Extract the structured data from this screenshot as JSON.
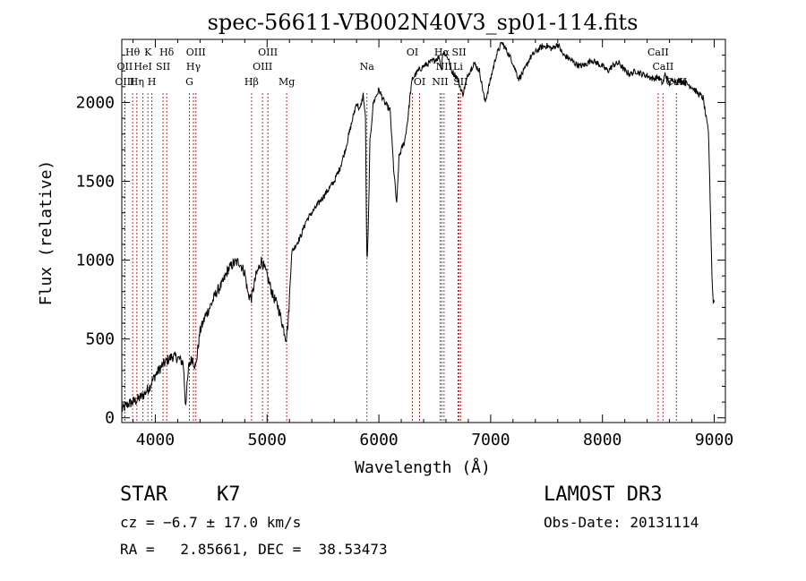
{
  "chart_data": {
    "type": "line",
    "title": "spec-56611-VB002N40V3_sp01-114.fits",
    "xlabel": "Wavelength (Å)",
    "ylabel": "Flux (relative)",
    "xlim": [
      3700,
      9100
    ],
    "ylim": [
      -30,
      2400
    ],
    "x_ticks": [
      4000,
      5000,
      6000,
      7000,
      8000,
      9000
    ],
    "y_ticks": [
      0,
      500,
      1000,
      1500,
      2000
    ],
    "colors": {
      "line": "#000000",
      "marker": "#b03030"
    },
    "series": [
      {
        "name": "flux",
        "x": [
          3700,
          3760,
          3800,
          3850,
          3900,
          3950,
          4000,
          4050,
          4100,
          4150,
          4200,
          4250,
          4270,
          4300,
          4330,
          4360,
          4400,
          4450,
          4500,
          4550,
          4600,
          4650,
          4700,
          4750,
          4800,
          4830,
          4860,
          4900,
          4950,
          5000,
          5050,
          5100,
          5150,
          5170,
          5190,
          5220,
          5260,
          5300,
          5350,
          5400,
          5450,
          5500,
          5550,
          5600,
          5650,
          5700,
          5750,
          5800,
          5830,
          5860,
          5880,
          5890,
          5895,
          5905,
          5920,
          5950,
          6000,
          6050,
          6100,
          6130,
          6160,
          6180,
          6200,
          6230,
          6260,
          6280,
          6300,
          6350,
          6400,
          6450,
          6500,
          6540,
          6560,
          6565,
          6580,
          6620,
          6650,
          6700,
          6750,
          6800,
          6850,
          6900,
          6950,
          7000,
          7050,
          7100,
          7150,
          7200,
          7250,
          7300,
          7350,
          7400,
          7450,
          7500,
          7550,
          7600,
          7650,
          7700,
          7750,
          7800,
          7850,
          7900,
          7950,
          8000,
          8050,
          8100,
          8150,
          8200,
          8250,
          8300,
          8350,
          8400,
          8450,
          8500,
          8540,
          8560,
          8600,
          8640,
          8660,
          8700,
          8750,
          8800,
          8850,
          8900,
          8950,
          8980,
          8990,
          9000
        ],
        "values": [
          50,
          90,
          100,
          120,
          150,
          200,
          270,
          320,
          360,
          390,
          380,
          350,
          80,
          330,
          380,
          320,
          550,
          650,
          720,
          800,
          850,
          940,
          980,
          990,
          920,
          780,
          760,
          900,
          1000,
          900,
          780,
          700,
          560,
          500,
          620,
          1050,
          1100,
          1150,
          1250,
          1300,
          1350,
          1400,
          1450,
          1500,
          1580,
          1700,
          1850,
          2000,
          1950,
          2050,
          1900,
          1100,
          980,
          1200,
          1750,
          2000,
          2080,
          2000,
          1950,
          1600,
          1350,
          1650,
          1700,
          1750,
          1900,
          2050,
          2150,
          2200,
          2230,
          2250,
          2270,
          2290,
          2200,
          2300,
          2320,
          2280,
          2200,
          2160,
          2050,
          2180,
          2250,
          2200,
          2000,
          2150,
          2300,
          2380,
          2320,
          2250,
          2150,
          2200,
          2280,
          2320,
          2350,
          2360,
          2340,
          2370,
          2300,
          2280,
          2250,
          2230,
          2240,
          2270,
          2250,
          2230,
          2200,
          2240,
          2250,
          2200,
          2180,
          2200,
          2180,
          2170,
          2150,
          2160,
          2120,
          2180,
          2120,
          2150,
          2130,
          2140,
          2120,
          2100,
          2060,
          2030,
          1800,
          900,
          740,
          740
        ]
      }
    ],
    "line_markers": [
      {
        "label": "Hθ",
        "x": 3797,
        "row": 1
      },
      {
        "label": "OII",
        "x": 3727,
        "row": 2
      },
      {
        "label": "HeI",
        "x": 3889,
        "row": 2
      },
      {
        "label": "OIII",
        "x": 3727,
        "row": 3
      },
      {
        "label": "Hη",
        "x": 3835,
        "row": 3
      },
      {
        "label": "K",
        "x": 3934,
        "row": 1
      },
      {
        "label": "H",
        "x": 3969,
        "row": 3
      },
      {
        "label": "SII",
        "x": 4069,
        "row": 2
      },
      {
        "label": "Hδ",
        "x": 4102,
        "row": 1
      },
      {
        "label": "OIII",
        "x": 4363,
        "row": 1
      },
      {
        "label": "Hγ",
        "x": 4341,
        "row": 2
      },
      {
        "label": "G",
        "x": 4305,
        "row": 3
      },
      {
        "label": "OIII",
        "x": 5007,
        "row": 1
      },
      {
        "label": "OIII",
        "x": 4959,
        "row": 2
      },
      {
        "label": "Hβ",
        "x": 4861,
        "row": 3
      },
      {
        "label": "Mg",
        "x": 5175,
        "row": 3
      },
      {
        "label": "Na",
        "x": 5893,
        "row": 2
      },
      {
        "label": "OI",
        "x": 6300,
        "row": 1
      },
      {
        "label": "OI",
        "x": 6364,
        "row": 3
      },
      {
        "label": "Hα",
        "x": 6563,
        "row": 1
      },
      {
        "label": "NII",
        "x": 6548,
        "row": 3
      },
      {
        "label": "NII",
        "x": 6583,
        "row": 2
      },
      {
        "label": "Li",
        "x": 6708,
        "row": 2
      },
      {
        "label": "SII",
        "x": 6717,
        "row": 1
      },
      {
        "label": "SII",
        "x": 6731,
        "row": 3
      },
      {
        "label": "CaII",
        "x": 8498,
        "row": 1
      },
      {
        "label": "CaII",
        "x": 8542,
        "row": 2
      },
      {
        "label": "CaII",
        "x": 8662,
        "row": 3
      }
    ]
  },
  "info": {
    "class_label": "STAR",
    "subclass": "K7",
    "survey": "LAMOST DR3",
    "cz": "cz = −6.7 ± 17.0 km/s",
    "obs_date": "Obs-Date: 20131114",
    "coords": "RA =   2.85661, DEC =  38.53473"
  }
}
